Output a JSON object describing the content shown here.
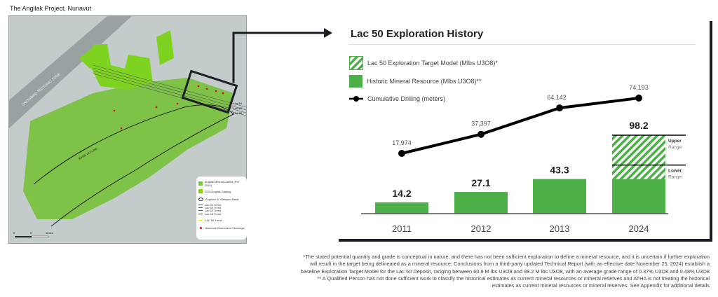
{
  "page_title": "The Angilak Project, Nunavut",
  "map": {
    "labels": {
      "zone": "SNOWBIRD TECTONIC ZONE",
      "basin": "BASIN OUTLINE",
      "lac54": "Lac 54",
      "lac50": "Lac 50",
      "lac48": "Lac 48"
    },
    "scale": {
      "t0": "0",
      "t1": "5",
      "t2": "10 km"
    },
    "legend": [
      {
        "label": "Angilak Mineral Claims (Pre 2024)",
        "icon": "green-square",
        "color": "#7ac943"
      },
      {
        "label": "2024 Angilak Staking",
        "icon": "green-square",
        "color": "#8cd600"
      },
      {
        "label": "Angikuni & Yathkyed Basin",
        "icon": "basin-outline"
      },
      {
        "label": "Lac 54 Trend"
      },
      {
        "label": "Lac 50 Trend"
      },
      {
        "label": "Lac 52 Trend"
      },
      {
        "label": "Lac 48 Trend"
      },
      {
        "label": "LAC 50 Trend",
        "icon": "yellow-line",
        "color": "#f2e600"
      },
      {
        "label": "Historical Mineralized Showings",
        "icon": "red-dot",
        "color": "#e8000b"
      }
    ]
  },
  "chart_data": {
    "type": "bar",
    "title": "Lac 50 Exploration History",
    "categories": [
      "2011",
      "2012",
      "2013",
      "2024"
    ],
    "legend": [
      {
        "label": "Lac 50 Exploration Target Model (Mlbs U3O8)*",
        "pattern": "hatched"
      },
      {
        "label": "Historic Mineral Resource (Mlbs U3O8)**"
      },
      {
        "label": "Cumulative Drilling (meters)"
      }
    ],
    "series": [
      {
        "name": "Historic Mineral Resource (Mlbs U3O8)**",
        "type": "bar",
        "values": [
          14.2,
          27.1,
          43.3,
          43.3
        ],
        "labels": [
          "14.2",
          "27.1",
          "43.3",
          ""
        ],
        "color": "#4caf47"
      },
      {
        "name": "Lac 50 Exploration Target Model (Mlbs U3O8)*",
        "type": "bar-range",
        "category": "2024",
        "lower": 60.8,
        "upper": 98.2,
        "label": "98.2",
        "range_labels": {
          "upper": "Upper",
          "upper_sub": "Range",
          "lower": "Lower",
          "lower_sub": "Range"
        }
      },
      {
        "name": "Cumulative Drilling (meters)",
        "type": "line",
        "values": [
          17974,
          37397,
          64142,
          74193
        ],
        "labels": [
          "17,974",
          "37,397",
          "64,142",
          "74,193"
        ],
        "color": "#000000"
      }
    ],
    "ylim": [
      0,
      110
    ]
  },
  "footnotes": [
    "*The stated potential quantity and grade is conceptual in nature, and there has not been sufficient exploration to define a mineral resource, and it is uncertain if further exploration",
    "will result in the target being delineated as a mineral resource; Conclusions from a third-party updated Technical Report (with an effective date November 25, 2024) establish a",
    "baseline Exploration Target Model for the Lac 50 Deposit, ranging between 60.8 M lbs U3O8 and 98.2 M lbs U3O8, with an average grade range of 0.37% U3O8 and 0.48% U3O8",
    "** A Qualified Person has not done sufficient work to classify the historical estimates as current mineral resources or mineral reserves and ATHA is not treating the historical",
    "estimates as current mineral resources or mineral reserves. See Appendix for additional details"
  ]
}
